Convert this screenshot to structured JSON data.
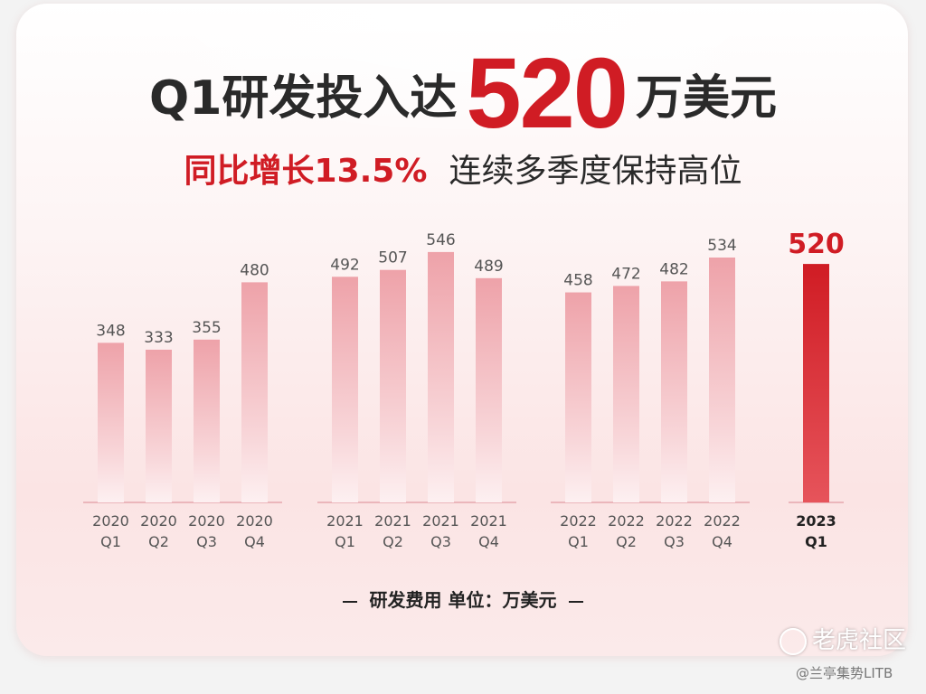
{
  "headline": {
    "part1": "Q1研发投入达",
    "value": "520",
    "part2": "万美元"
  },
  "subheadline": {
    "growth": "同比增长13.5%",
    "note": "连续多季度保持高位"
  },
  "footer": {
    "caption": "研发费用 单位：万美元"
  },
  "watermark": {
    "brand": "老虎社区",
    "handle": "@兰亭集势LITB"
  },
  "colors": {
    "accent": "#d01c24",
    "bar_light": "#f2aeb4",
    "bar_highlight": "#d8232c"
  },
  "chart_data": {
    "type": "bar",
    "categories": [
      [
        "2020",
        "Q1"
      ],
      [
        "2020",
        "Q2"
      ],
      [
        "2020",
        "Q3"
      ],
      [
        "2020",
        "Q4"
      ],
      [
        "2021",
        "Q1"
      ],
      [
        "2021",
        "Q2"
      ],
      [
        "2021",
        "Q3"
      ],
      [
        "2021",
        "Q4"
      ],
      [
        "2022",
        "Q1"
      ],
      [
        "2022",
        "Q2"
      ],
      [
        "2022",
        "Q3"
      ],
      [
        "2022",
        "Q4"
      ],
      [
        "2023",
        "Q1"
      ]
    ],
    "values": [
      348,
      333,
      355,
      480,
      492,
      507,
      546,
      489,
      458,
      472,
      482,
      534,
      520
    ],
    "groups": [
      [
        0,
        1,
        2,
        3
      ],
      [
        4,
        5,
        6,
        7
      ],
      [
        8,
        9,
        10,
        11
      ],
      [
        12
      ]
    ],
    "highlight_index": 12,
    "ylim": [
      0,
      600
    ],
    "unit": "万美元"
  }
}
